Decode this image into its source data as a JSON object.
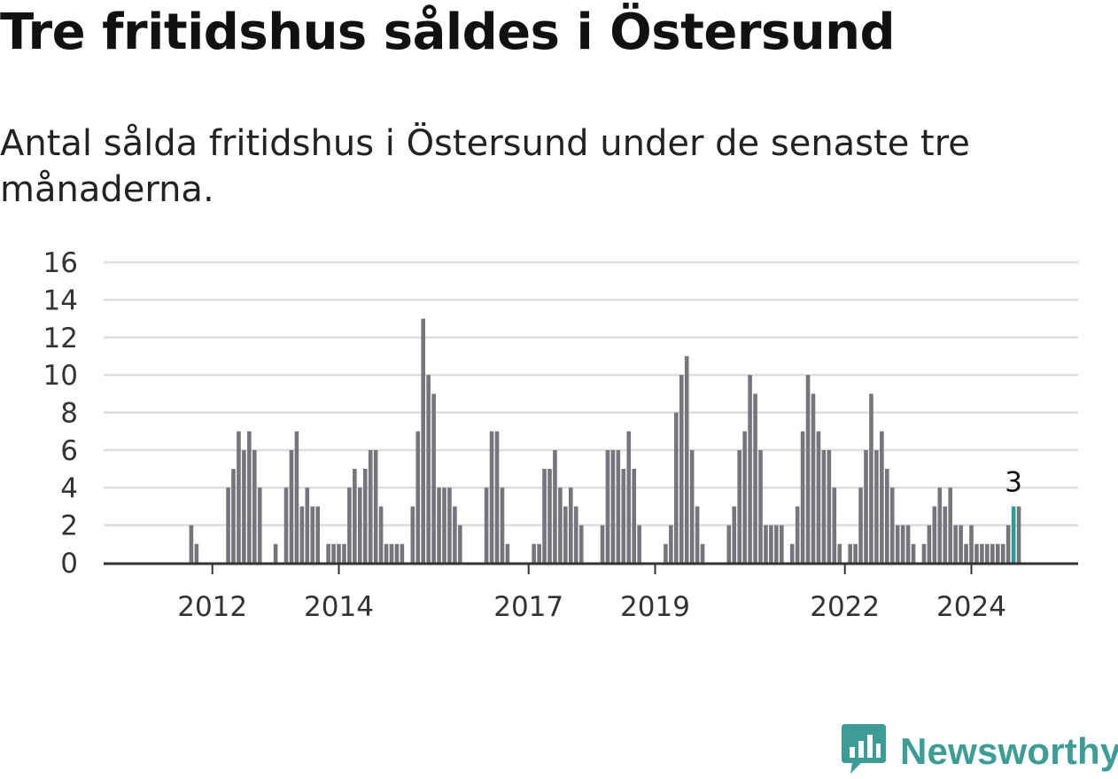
{
  "header": {
    "title": "Tre fritidshus såldes i Östersund",
    "subtitle": "Antal sålda fritidshus i Östersund under de senaste tre månaderna."
  },
  "colors": {
    "bar": "#76757b",
    "highlight": "#2a9c96",
    "grid": "#dddddd",
    "axis": "#333333",
    "brand": "#3e9c96"
  },
  "brand": {
    "name": "Newsworthy",
    "icon": "newsworthy-logo-icon"
  },
  "chart_data": {
    "type": "bar",
    "x_start": "2011-01",
    "x_step": "month",
    "y_ticks": [
      0,
      2,
      4,
      6,
      8,
      10,
      12,
      14,
      16
    ],
    "ylim": [
      0,
      16
    ],
    "x_ticks": [
      {
        "label": "2012",
        "index": 12
      },
      {
        "label": "2014",
        "index": 36
      },
      {
        "label": "2017",
        "index": 72
      },
      {
        "label": "2019",
        "index": 96
      },
      {
        "label": "2022",
        "index": 132
      },
      {
        "label": "2024",
        "index": 156
      }
    ],
    "values": [
      0,
      0,
      0,
      0,
      0,
      0,
      0,
      0,
      2,
      1,
      0,
      0,
      0,
      0,
      0,
      4,
      5,
      7,
      6,
      7,
      6,
      4,
      0,
      0,
      1,
      0,
      4,
      6,
      7,
      3,
      4,
      3,
      3,
      0,
      1,
      1,
      1,
      1,
      4,
      5,
      4,
      5,
      6,
      6,
      3,
      1,
      1,
      1,
      1,
      0,
      3,
      7,
      13,
      10,
      9,
      4,
      4,
      4,
      3,
      2,
      0,
      0,
      0,
      0,
      4,
      7,
      7,
      4,
      1,
      0,
      0,
      0,
      0,
      1,
      1,
      5,
      5,
      6,
      4,
      3,
      4,
      3,
      2,
      0,
      0,
      0,
      2,
      6,
      6,
      6,
      5,
      7,
      5,
      2,
      0,
      0,
      0,
      0,
      1,
      2,
      8,
      10,
      11,
      6,
      3,
      1,
      0,
      0,
      0,
      0,
      2,
      3,
      6,
      7,
      10,
      9,
      6,
      2,
      2,
      2,
      2,
      0,
      1,
      3,
      7,
      10,
      9,
      7,
      6,
      6,
      4,
      1,
      0,
      1,
      1,
      4,
      6,
      9,
      6,
      7,
      5,
      4,
      2,
      2,
      2,
      1,
      0,
      1,
      2,
      3,
      4,
      3,
      4,
      2,
      2,
      1,
      2,
      1,
      1,
      1,
      1,
      1,
      1,
      2,
      3,
      3
    ],
    "highlight_index": 164,
    "highlight_label": "3",
    "grid": true,
    "legend": "none",
    "title": "Tre fritidshus såldes i Östersund",
    "xlabel": "",
    "ylabel": ""
  }
}
